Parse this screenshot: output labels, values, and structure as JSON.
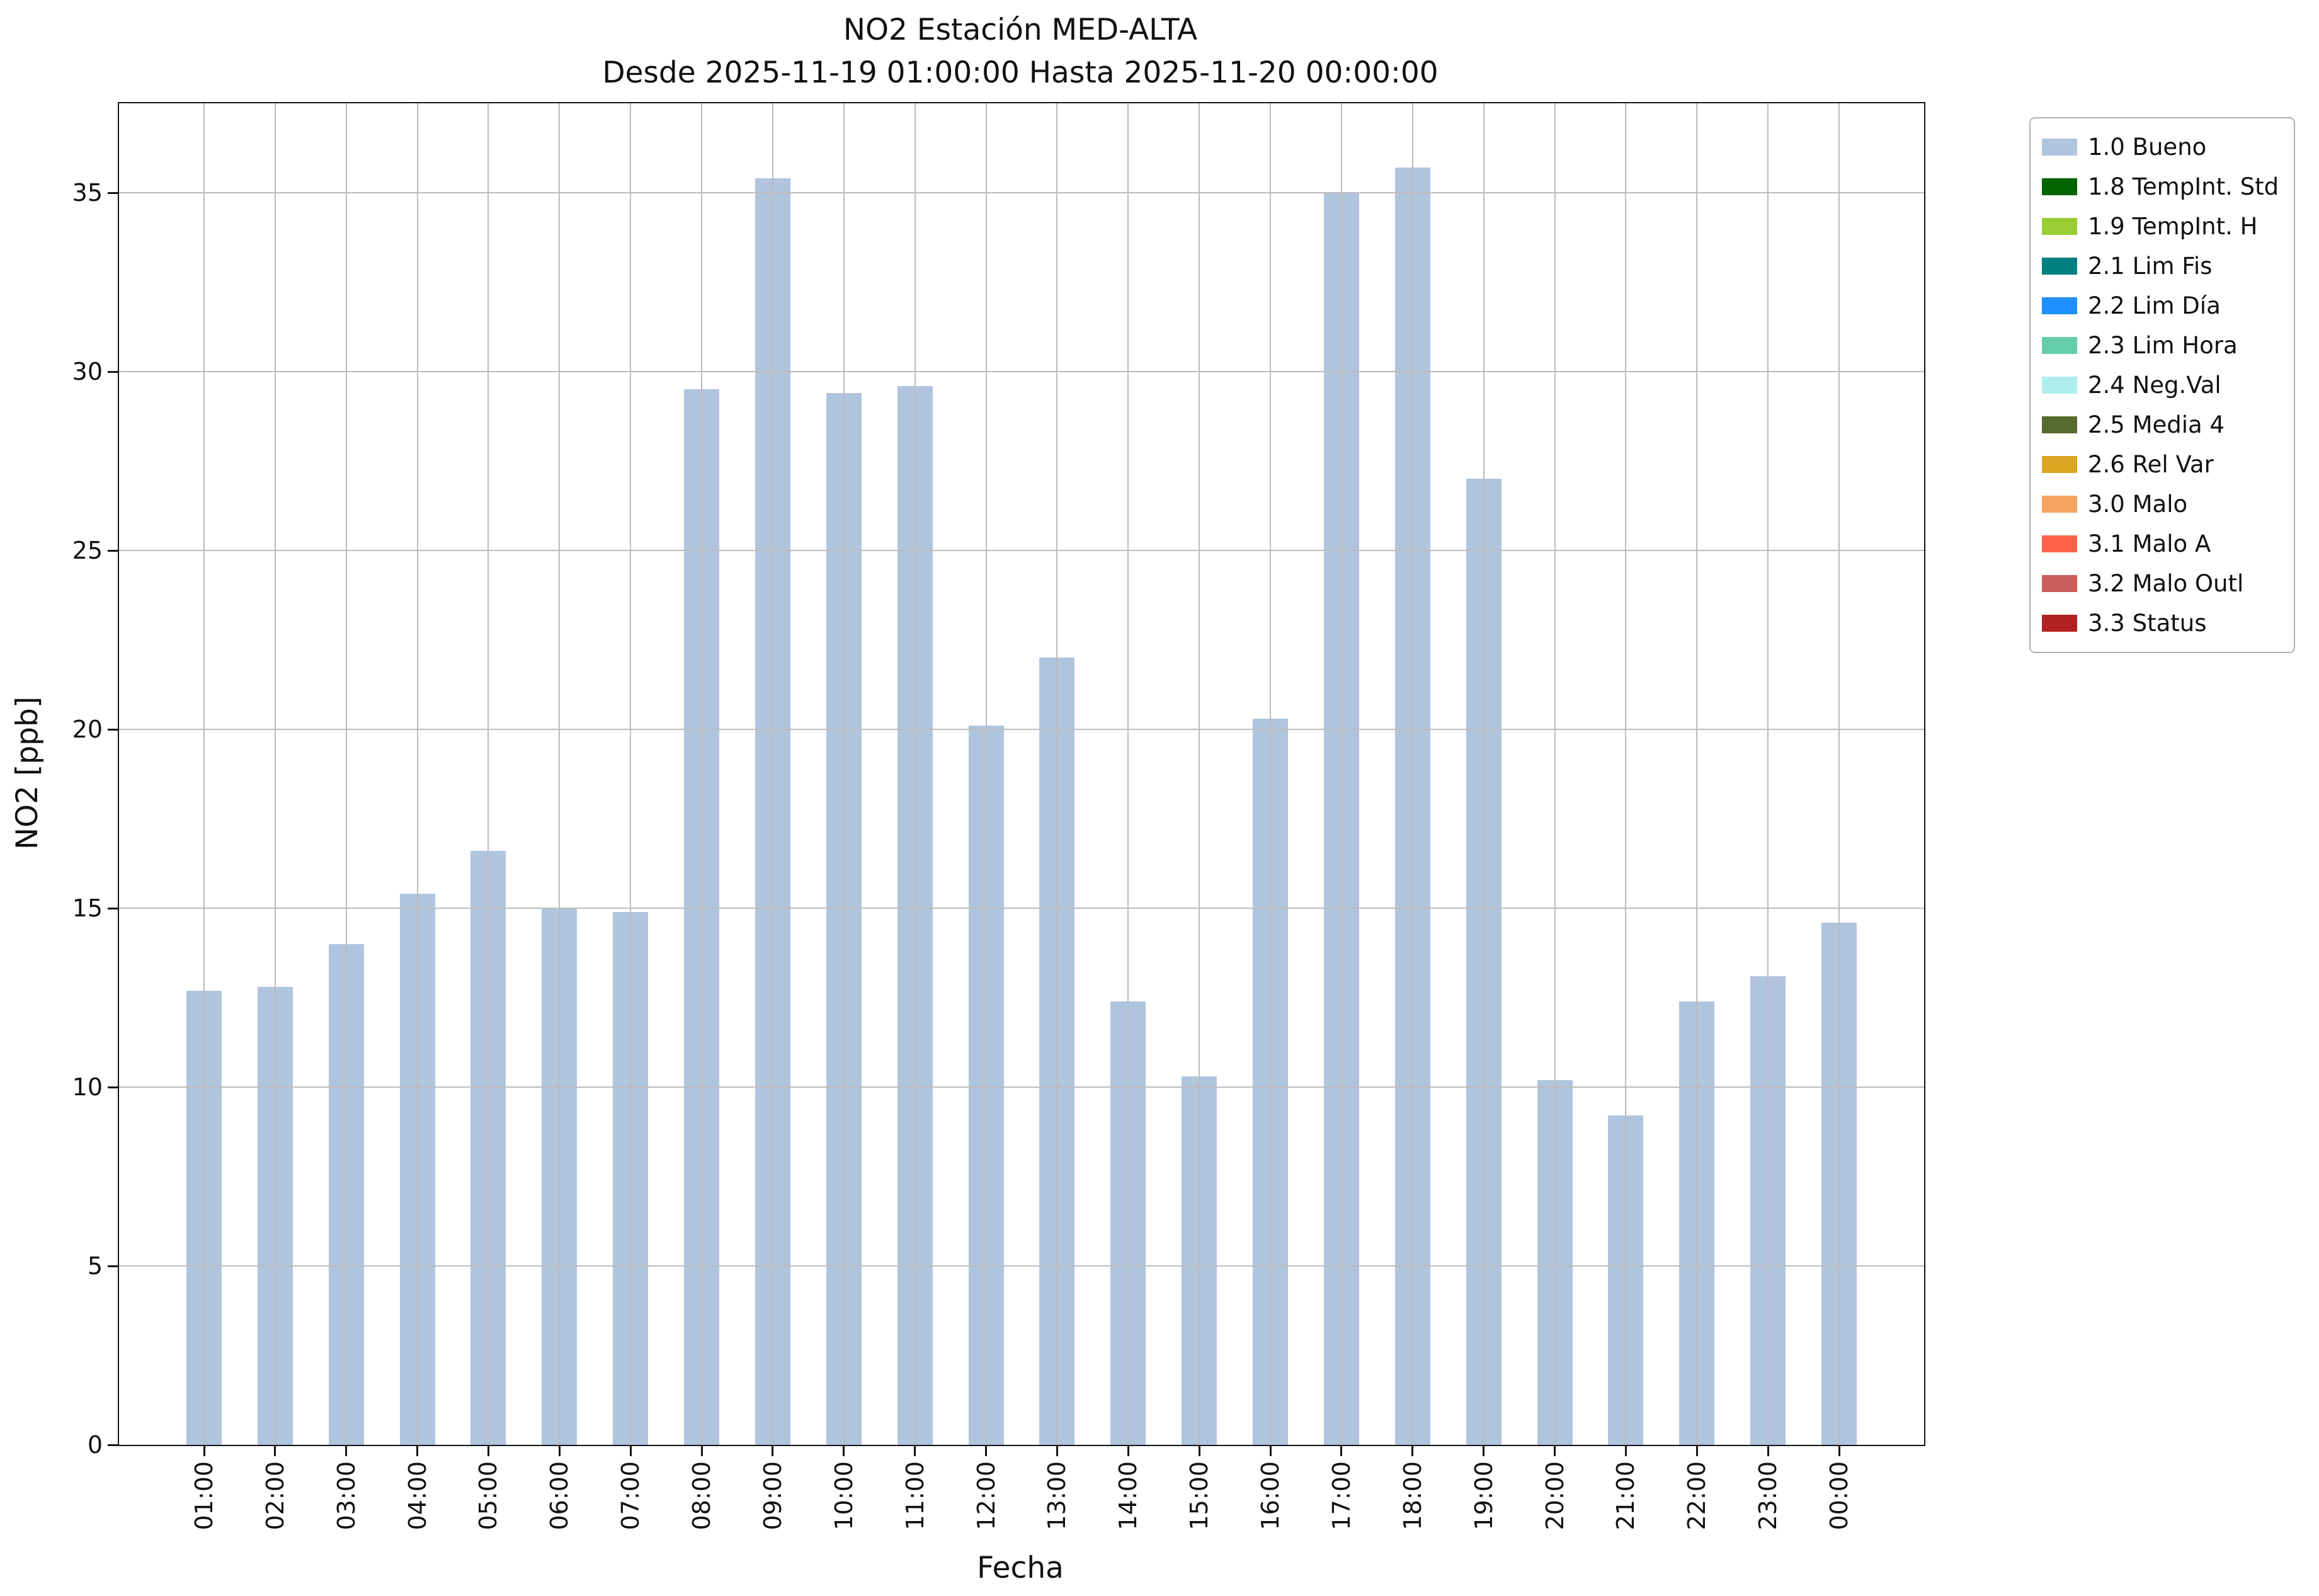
{
  "chart_data": {
    "type": "bar",
    "title": "NO2 Estación MED-ALTA",
    "subtitle": "Desde 2025-11-19 01:00:00 Hasta 2025-11-20 00:00:00",
    "xlabel": "Fecha",
    "ylabel": "NO2 [ppb]",
    "ylim": [
      0,
      37.5
    ],
    "yticks": [
      0,
      5,
      10,
      15,
      20,
      25,
      30,
      35
    ],
    "grid": true,
    "bar_color": "#b0c4de",
    "categories": [
      "01:00",
      "02:00",
      "03:00",
      "04:00",
      "05:00",
      "06:00",
      "07:00",
      "08:00",
      "09:00",
      "10:00",
      "11:00",
      "12:00",
      "13:00",
      "14:00",
      "15:00",
      "16:00",
      "17:00",
      "18:00",
      "19:00",
      "20:00",
      "21:00",
      "22:00",
      "23:00",
      "00:00"
    ],
    "values": [
      12.7,
      12.8,
      14.0,
      15.4,
      16.6,
      15.0,
      14.9,
      29.5,
      35.4,
      29.4,
      29.6,
      20.1,
      22.0,
      12.4,
      10.3,
      20.3,
      35.0,
      35.7,
      27.0,
      10.2,
      9.2,
      12.4,
      13.1,
      14.6
    ],
    "legend": {
      "position": "outside-upper-right",
      "entries": [
        {
          "label": "1.0 Bueno",
          "color": "#b0c4de"
        },
        {
          "label": "1.8 TempInt. Std",
          "color": "#006400"
        },
        {
          "label": "1.9 TempInt. H",
          "color": "#9acd32"
        },
        {
          "label": "2.1 Lim Fis",
          "color": "#008080"
        },
        {
          "label": "2.2 Lim Día",
          "color": "#1e90ff"
        },
        {
          "label": "2.3 Lim Hora",
          "color": "#66cdaa"
        },
        {
          "label": "2.4 Neg.Val",
          "color": "#afeeee"
        },
        {
          "label": "2.5 Media 4",
          "color": "#556b2f"
        },
        {
          "label": "2.6 Rel Var",
          "color": "#daa520"
        },
        {
          "label": "3.0 Malo",
          "color": "#f4a460"
        },
        {
          "label": "3.1 Malo A",
          "color": "#ff6347"
        },
        {
          "label": "3.2 Malo Outl",
          "color": "#cd5c5c"
        },
        {
          "label": "3.3 Status",
          "color": "#b22222"
        }
      ]
    }
  }
}
